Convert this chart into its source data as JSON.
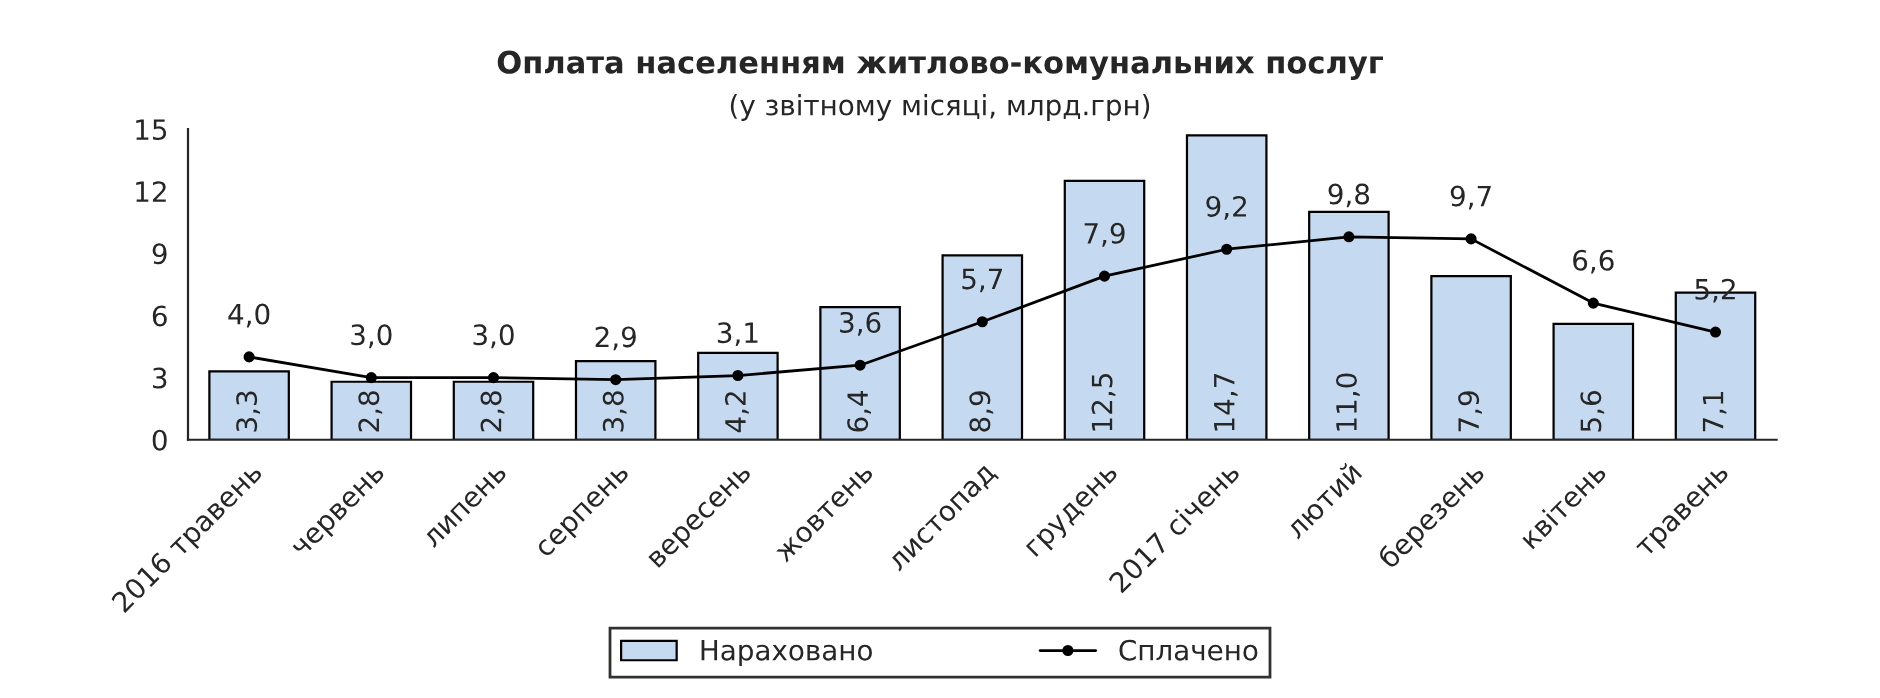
{
  "chart_data": {
    "type": "bar",
    "title": "Оплата населенням житлово-комунальних послуг",
    "subtitle": "(у звітному місяці, млрд.грн)",
    "categories": [
      "2016 травень",
      "червень",
      "липень",
      "серпень",
      "вересень",
      "жовтень",
      "листопад",
      "грудень",
      "2017 січень",
      "лютий",
      "березень",
      "квітень",
      "травень"
    ],
    "series": [
      {
        "name": "Нараховано",
        "color": "#c5daf0",
        "values": [
          3.3,
          2.8,
          2.8,
          3.8,
          4.2,
          6.4,
          8.9,
          12.5,
          14.7,
          11.0,
          7.9,
          5.6,
          7.1
        ],
        "value_labels": [
          "3,3",
          "2,8",
          "2,8",
          "3,8",
          "4,2",
          "6,4",
          "8,9",
          "12,5",
          "14,7",
          "11,0",
          "7,9",
          "5,6",
          "7,1"
        ]
      },
      {
        "name": "Сплачено",
        "type": "line",
        "color": "#000000",
        "values": [
          4.0,
          3.0,
          3.0,
          2.9,
          3.1,
          3.6,
          5.7,
          7.9,
          9.2,
          9.8,
          9.7,
          6.6,
          5.2
        ],
        "value_labels": [
          "4,0",
          "3,0",
          "3,0",
          "2,9",
          "3,1",
          "3,6",
          "5,7",
          "7,9",
          "9,2",
          "9,8",
          "9,7",
          "6,6",
          "5,2"
        ]
      }
    ],
    "ylim": [
      0,
      15
    ],
    "yticks": [
      0,
      3,
      6,
      9,
      12,
      15
    ],
    "grid": false,
    "legend": "bottom",
    "marker": "circle",
    "line_style": "solid"
  }
}
